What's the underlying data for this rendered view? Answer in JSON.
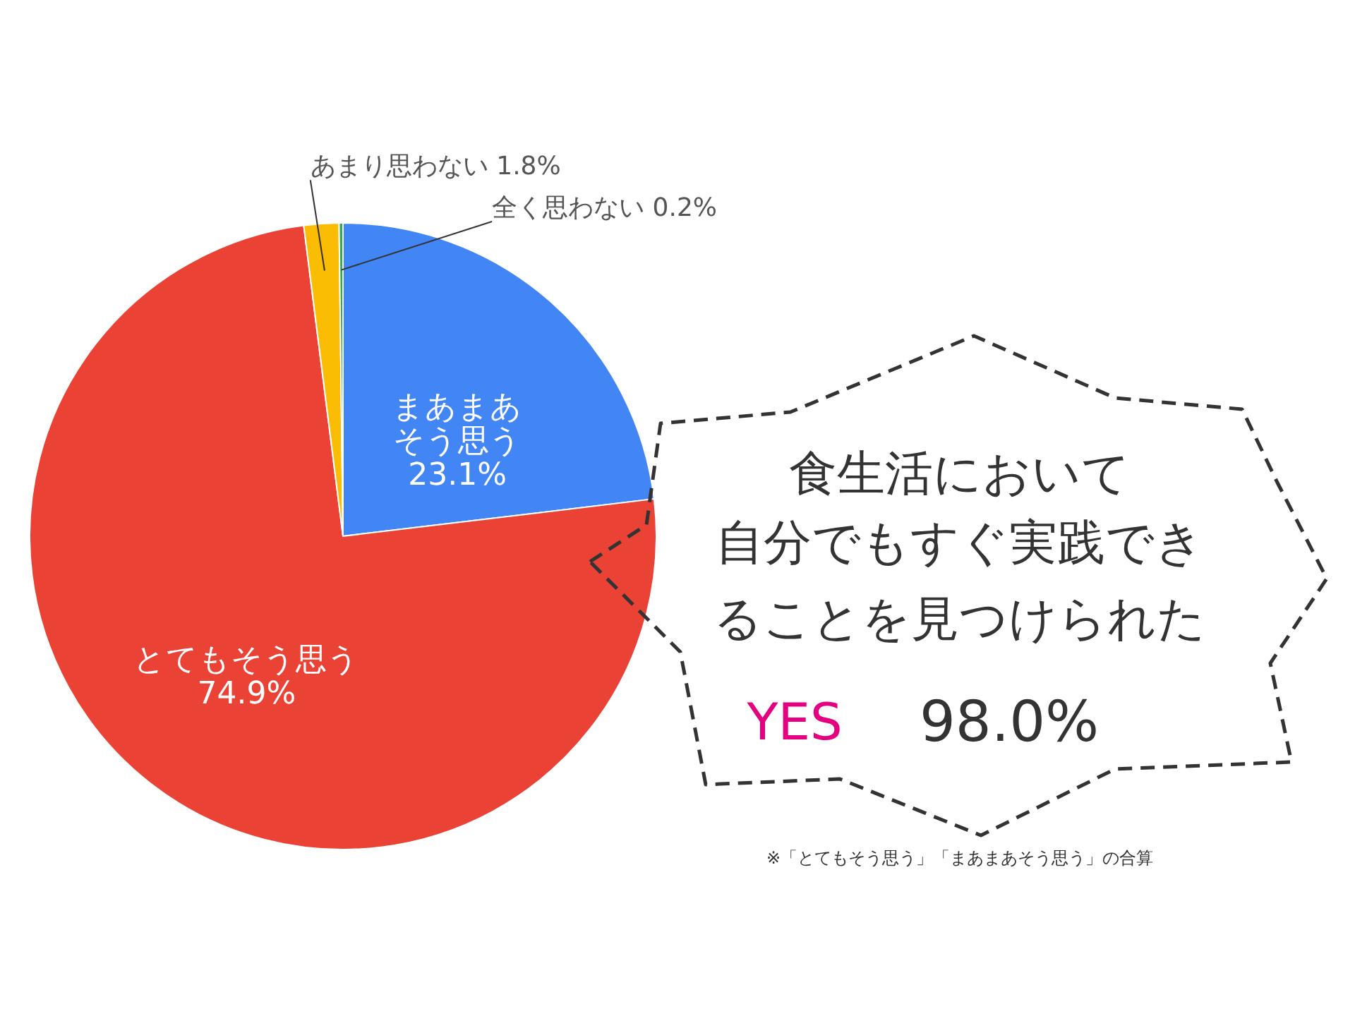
{
  "chart_data": {
    "type": "pie",
    "categories": [
      "まあまあそう思う",
      "とてもそう思う",
      "あまり思わない",
      "全く思わない"
    ],
    "values": [
      23.1,
      74.9,
      1.8,
      0.2
    ],
    "value_labels": [
      "23.1%",
      "74.9%",
      "1.8%",
      "0.2%"
    ],
    "colors": [
      "#4285f4",
      "#ea4335",
      "#fbbc04",
      "#34a853"
    ],
    "data_labels": true,
    "annotations": [
      "食生活において",
      "自分でもすぐ実践でき",
      "ることを見つけられた",
      "YES",
      "98.0%",
      "※「とてもそう思う」「まあまあそう思う」の合算"
    ]
  }
}
